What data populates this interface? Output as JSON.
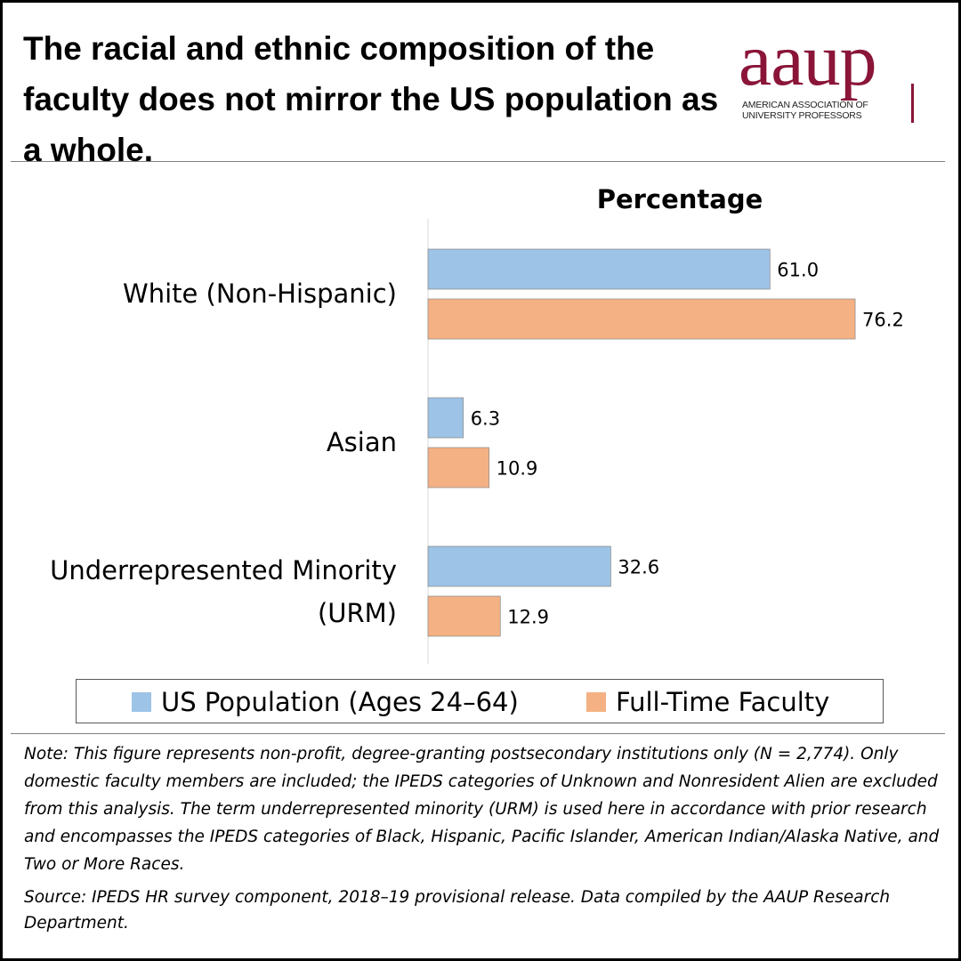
{
  "title": "The racial and ethnic composition of the faculty does not mirror the US population as a whole.",
  "logo": {
    "wordmark": "aaup",
    "subtitle": "AMERICAN ASSOCIATION OF UNIVERSITY PROFESSORS",
    "color": "#8a1538"
  },
  "chart_data": {
    "type": "bar",
    "orientation": "horizontal",
    "title": "Percentage",
    "categories": [
      "White (Non-Hispanic)",
      "Asian",
      "Underrepresented Minority (URM)"
    ],
    "series": [
      {
        "name": "US Population (Ages 24–64)",
        "values": [
          61.0,
          6.3,
          32.6
        ],
        "labels": [
          "61.0",
          "6.3",
          "32.6"
        ],
        "color": "#9dc3e6"
      },
      {
        "name": "Full-Time Faculty",
        "values": [
          76.2,
          10.9,
          12.9
        ],
        "labels": [
          "76.2",
          "10.9",
          "12.9"
        ],
        "color": "#f4b183"
      }
    ],
    "xlim": [
      0,
      100
    ],
    "grid": false,
    "legend": "bottom"
  },
  "notes": {
    "note": "Note: This figure represents non-profit, degree-granting postsecondary institutions only (N = 2,774). Only domestic faculty members are included; the IPEDS categories of Unknown and Nonresident Alien are excluded from this analysis. The term underrepresented minority (URM) is used here in accordance with prior research and encompasses the IPEDS categories of Black, Hispanic, Pacific Islander, American Indian/Alaska Native, and Two or More Races.",
    "source": "Source: IPEDS HR survey component, 2018–19 provisional release. Data compiled by the AAUP Research Department."
  }
}
